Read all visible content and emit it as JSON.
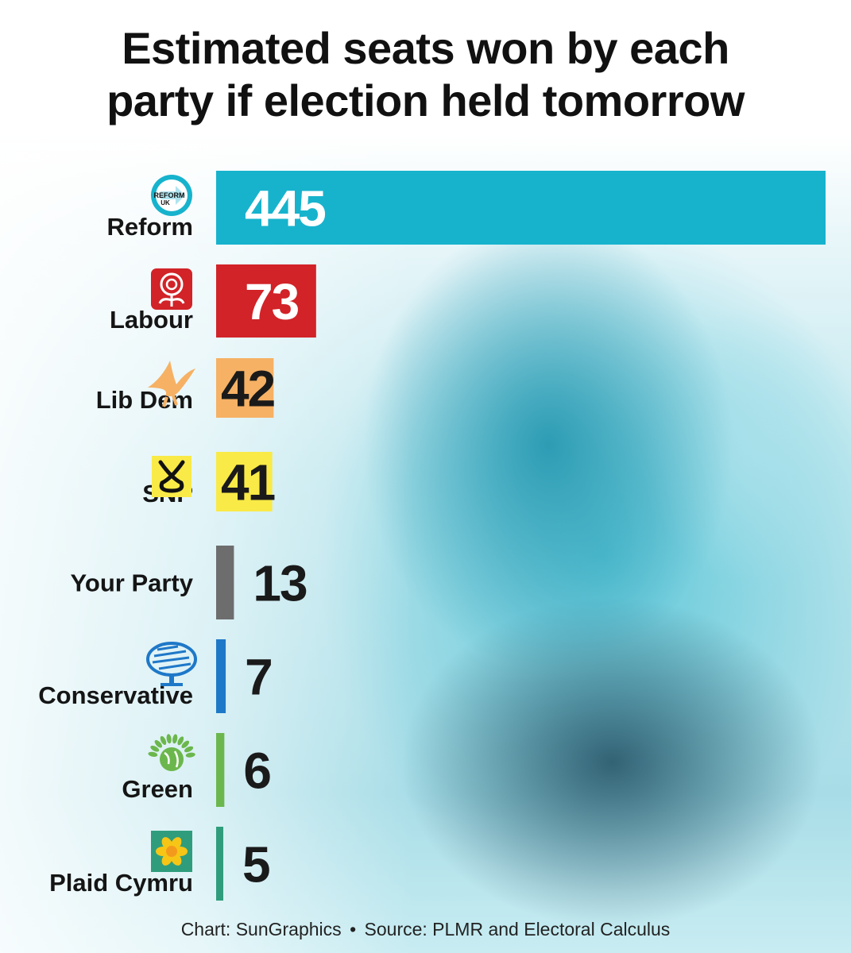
{
  "title_line1": "Estimated seats won by each",
  "title_line2": "party if election held tomorrow",
  "credit_chart": "Chart: SunGraphics",
  "credit_separator": "•",
  "credit_source": "Source: PLMR and Electoral Calculus",
  "reform_logo_text": "REFORM",
  "reform_logo_sub": "UK",
  "chart_data": {
    "type": "bar",
    "orientation": "horizontal",
    "categories": [
      "Reform",
      "Labour",
      "Lib Dem",
      "SNP",
      "Your Party",
      "Conservative",
      "Green",
      "Plaid Cymru"
    ],
    "values": [
      445,
      73,
      42,
      41,
      13,
      7,
      6,
      5
    ],
    "colors": [
      "#17b3cd",
      "#d12328",
      "#f6b164",
      "#f9ea47",
      "#6d6d6d",
      "#1e78c8",
      "#6cb74d",
      "#2f9d7c"
    ],
    "icons": [
      "reform-arrow-icon",
      "labour-rose-icon",
      "libdem-bird-icon",
      "snp-knot-icon",
      "",
      "conservative-tree-icon",
      "green-globe-icon",
      "plaid-poppy-icon"
    ],
    "title": "Estimated seats won by each party if election held tomorrow",
    "xlim": [
      0,
      445
    ]
  }
}
